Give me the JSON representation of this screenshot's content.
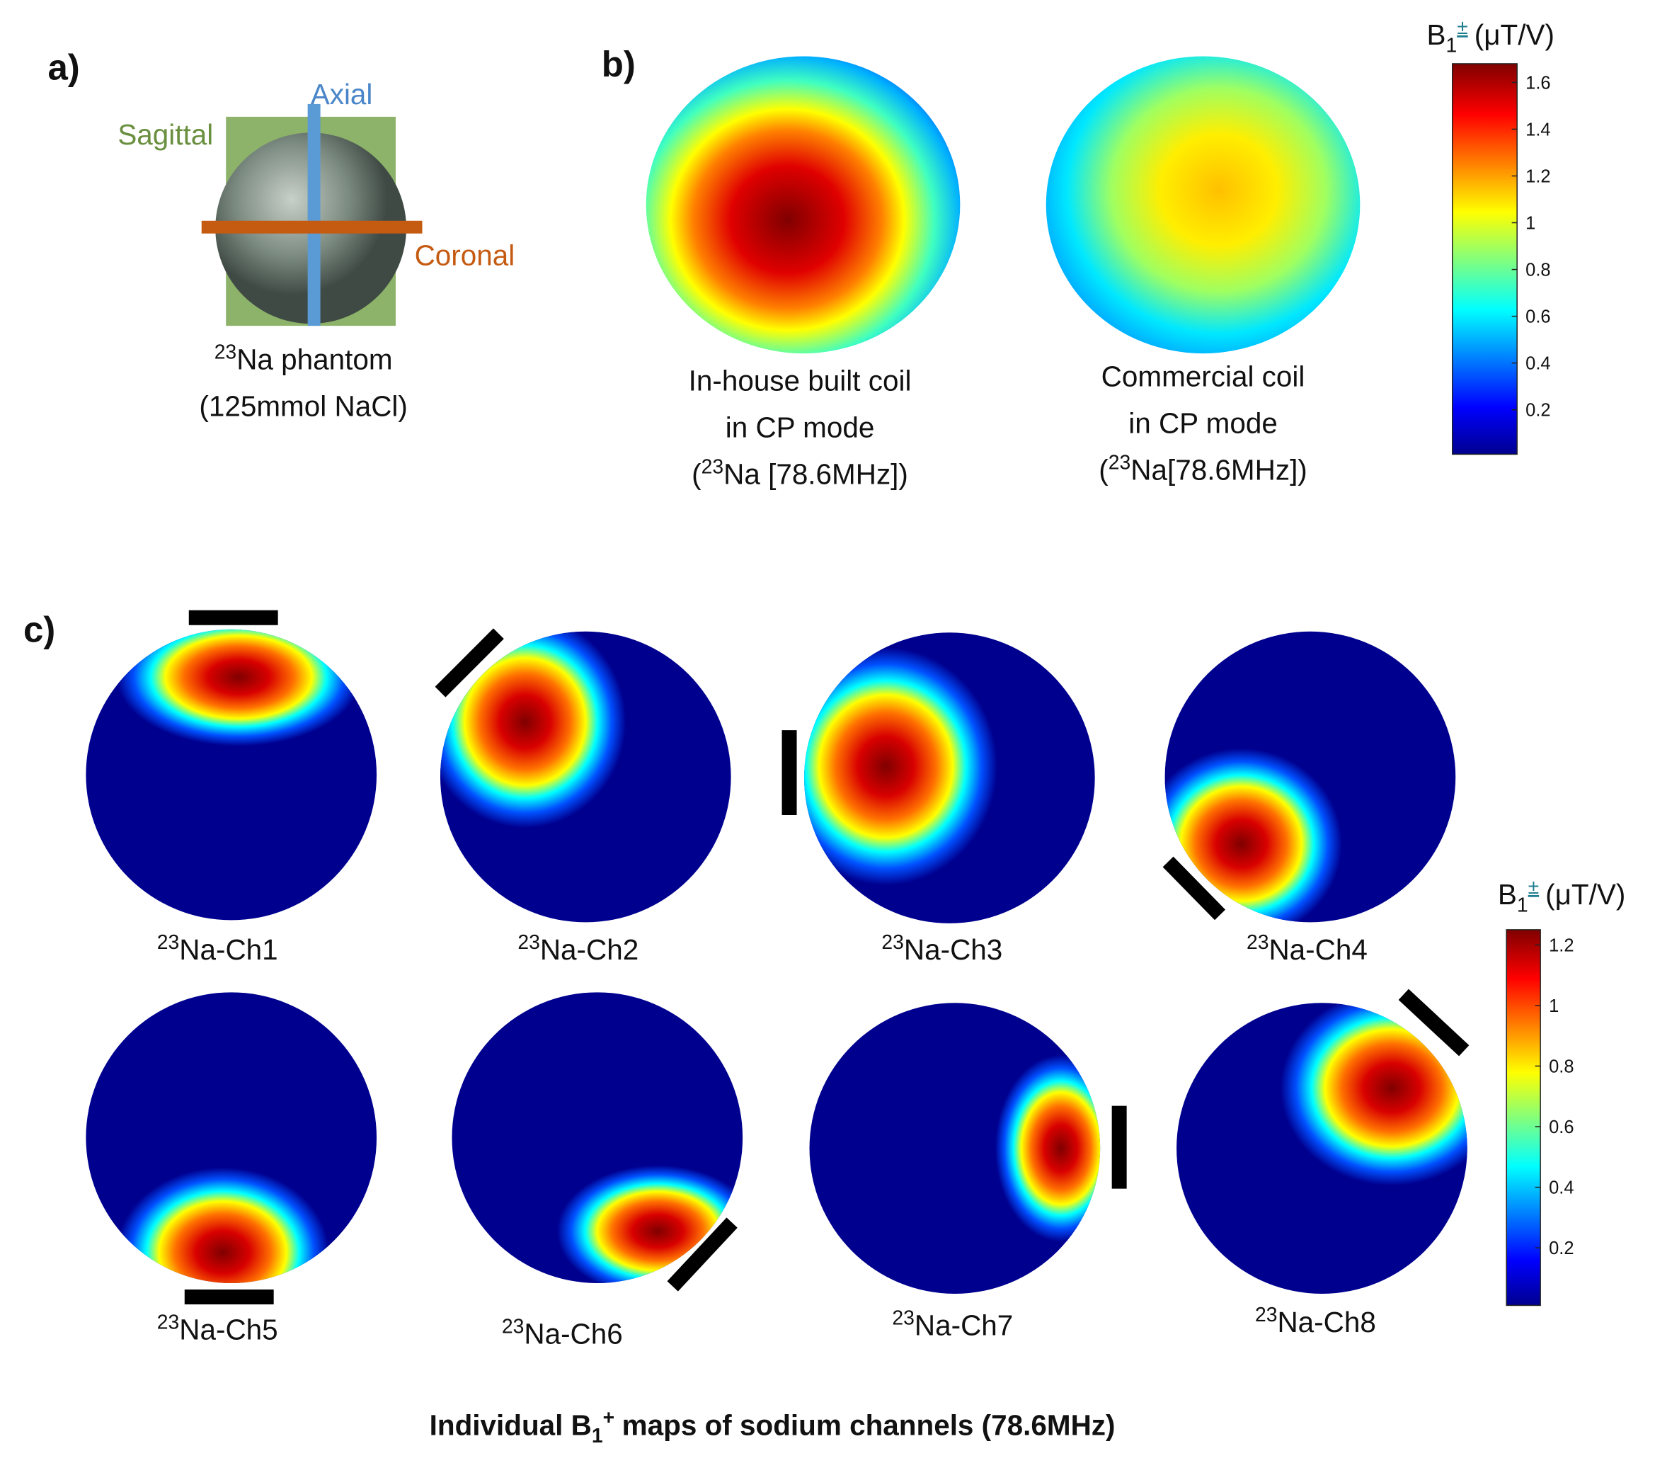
{
  "panel_a": {
    "label": "a)",
    "planes": {
      "axial": "Axial",
      "sagittal": "Sagittal",
      "coronal": "Coronal"
    },
    "caption": {
      "sup": "23",
      "text": "Na phantom",
      "line2": "(125mmol NaCl)"
    }
  },
  "panel_b": {
    "label": "b)",
    "maps": [
      {
        "lines": [
          "In-house built coil",
          "in CP mode"
        ],
        "iso": {
          "open": "(",
          "sup": "23",
          "text": "Na [78.6MHz])"
        }
      },
      {
        "lines": [
          "Commercial coil",
          "in CP mode"
        ],
        "iso": {
          "open": "(",
          "sup": "23",
          "text": "Na[78.6MHz])"
        }
      }
    ],
    "colorbar": {
      "title": {
        "base": "B",
        "sub": "1",
        "sup": "±",
        "unit": "(μT/V)"
      },
      "range": [
        0.01,
        1.68
      ],
      "ticks": [
        0.2,
        0.4,
        0.6,
        0.8,
        1,
        1.2,
        1.4,
        1.6
      ]
    }
  },
  "panel_c": {
    "label": "c)",
    "channels": [
      {
        "sup": "23",
        "text": "Na-Ch1"
      },
      {
        "sup": "23",
        "text": "Na-Ch2"
      },
      {
        "sup": "23",
        "text": "Na-Ch3"
      },
      {
        "sup": "23",
        "text": "Na-Ch4"
      },
      {
        "sup": "23",
        "text": "Na-Ch5"
      },
      {
        "sup": "23",
        "text": "Na-Ch6"
      },
      {
        "sup": "23",
        "text": "Na-Ch7"
      },
      {
        "sup": "23",
        "text": "Na-Ch8"
      }
    ],
    "colorbar": {
      "title": {
        "base": "B",
        "sub": "1",
        "sup": "±",
        "unit": "(μT/V)"
      },
      "range": [
        0.01,
        1.25
      ],
      "ticks": [
        0.2,
        0.4,
        0.6,
        0.8,
        1,
        1.2
      ]
    },
    "caption": {
      "base": "Individual B",
      "sub": "1",
      "sup": "+",
      "rest": "maps of sodium channels (78.6MHz)"
    }
  }
}
